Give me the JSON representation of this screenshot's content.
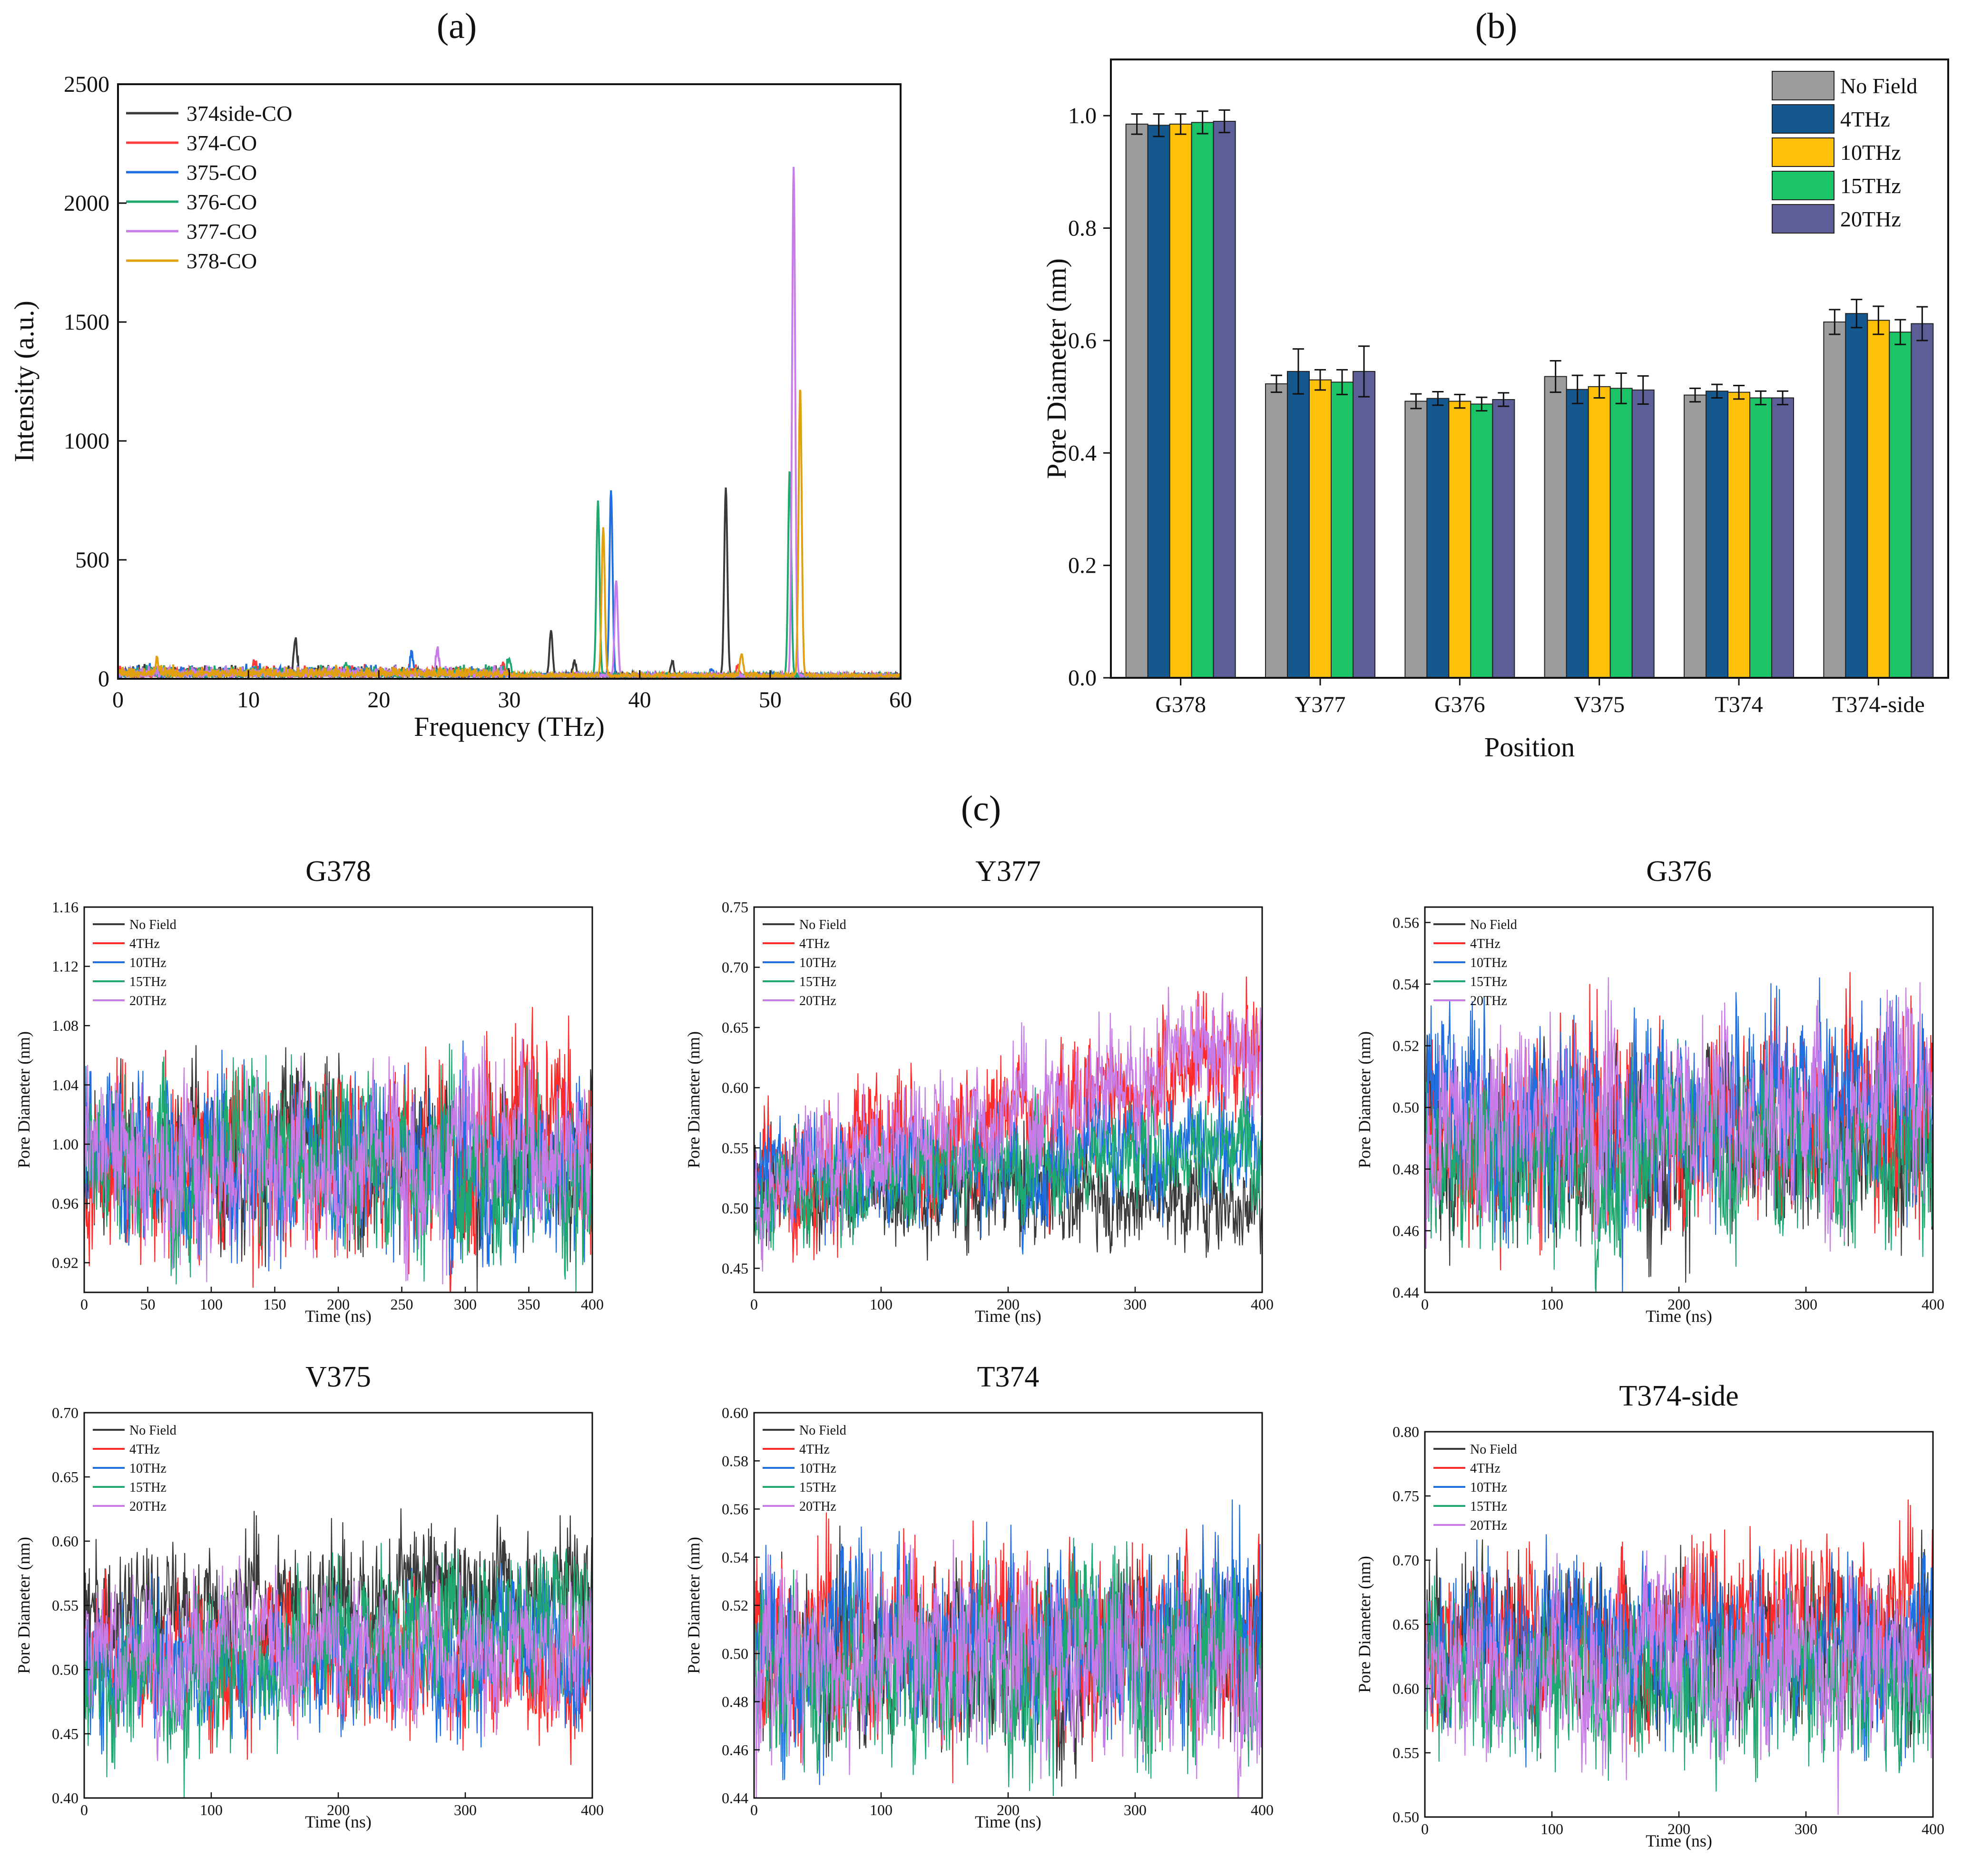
{
  "panel_labels": {
    "a": "(a)",
    "b": "(b)",
    "c": "(c)"
  },
  "chart_data": [
    {
      "id": "a",
      "type": "line",
      "title": "",
      "xlabel": "Frequency (THz)",
      "ylabel": "Intensity (a.u.)",
      "xlim": [
        0,
        60
      ],
      "ylim": [
        0,
        2500
      ],
      "xticks": [
        0,
        10,
        20,
        30,
        40,
        50,
        60
      ],
      "yticks": [
        0,
        500,
        1000,
        1500,
        2000,
        2500
      ],
      "grid": false,
      "legend_position": "top-left",
      "series": [
        {
          "name": "374side-CO",
          "color": "#3a3a3a",
          "peaks": [
            [
              2,
              30
            ],
            [
              13.6,
              150
            ],
            [
              33.2,
              190
            ],
            [
              46.6,
              790
            ],
            [
              35,
              60
            ],
            [
              42.5,
              60
            ]
          ]
        },
        {
          "name": "374-CO",
          "color": "#ff3b3b",
          "peaks": [
            [
              10.5,
              50
            ],
            [
              29.5,
              45
            ],
            [
              47.5,
              40
            ]
          ]
        },
        {
          "name": "375-CO",
          "color": "#1f6fe0",
          "peaks": [
            [
              22.5,
              80
            ],
            [
              37.8,
              780
            ],
            [
              45.5,
              30
            ]
          ]
        },
        {
          "name": "376-CO",
          "color": "#1fa870",
          "peaks": [
            [
              17.5,
              45
            ],
            [
              30,
              70
            ],
            [
              36.8,
              730
            ],
            [
              51.5,
              870
            ]
          ]
        },
        {
          "name": "377-CO",
          "color": "#c77ce8",
          "peaks": [
            [
              24.5,
              100
            ],
            [
              38.2,
              400
            ],
            [
              51.8,
              2140
            ]
          ]
        },
        {
          "name": "378-CO",
          "color": "#e0a010",
          "peaks": [
            [
              3,
              60
            ],
            [
              37.2,
              620
            ],
            [
              47.8,
              90
            ],
            [
              52.3,
              1210
            ]
          ]
        }
      ]
    },
    {
      "id": "b",
      "type": "bar",
      "title": "",
      "xlabel": "Position",
      "ylabel": "Pore Diameter (nm)",
      "ylim": [
        0,
        1.1
      ],
      "yticks": [
        "0.0",
        "0.2",
        "0.4",
        "0.6",
        "0.8",
        "1.0"
      ],
      "grid": false,
      "legend_position": "top-right",
      "categories": [
        "G378",
        "Y377",
        "G376",
        "V375",
        "T374",
        "T374-side"
      ],
      "series": [
        {
          "name": "No Field",
          "color": "#9c9c9c",
          "values": [
            0.985,
            0.523,
            0.492,
            0.536,
            0.503,
            0.633
          ],
          "errors": [
            0.018,
            0.015,
            0.013,
            0.028,
            0.012,
            0.022
          ]
        },
        {
          "name": "4THz",
          "color": "#14588f",
          "values": [
            0.983,
            0.545,
            0.497,
            0.513,
            0.51,
            0.648
          ],
          "errors": [
            0.02,
            0.04,
            0.012,
            0.025,
            0.012,
            0.025
          ]
        },
        {
          "name": "10THz",
          "color": "#ffc107",
          "values": [
            0.985,
            0.53,
            0.492,
            0.518,
            0.508,
            0.636
          ],
          "errors": [
            0.018,
            0.018,
            0.012,
            0.02,
            0.012,
            0.025
          ]
        },
        {
          "name": "15THz",
          "color": "#1bc466",
          "values": [
            0.988,
            0.526,
            0.487,
            0.515,
            0.498,
            0.615
          ],
          "errors": [
            0.02,
            0.022,
            0.012,
            0.027,
            0.012,
            0.022
          ]
        },
        {
          "name": "20THz",
          "color": "#5c5e98",
          "values": [
            0.99,
            0.545,
            0.495,
            0.512,
            0.498,
            0.63
          ],
          "errors": [
            0.02,
            0.045,
            0.012,
            0.025,
            0.012,
            0.03
          ]
        }
      ]
    },
    {
      "id": "c1",
      "type": "line",
      "title": "G378",
      "xlabel": "Time (ns)",
      "ylabel": "Pore Diameter (nm)",
      "xlim": [
        0,
        400
      ],
      "ylim": [
        0.9,
        1.16
      ],
      "xticks": [
        "0",
        "50",
        "100",
        "150",
        "200",
        "250",
        "300",
        "350",
        "400"
      ],
      "yticks": [
        "0.92",
        "0.96",
        "1.00",
        "1.04",
        "1.08",
        "1.12",
        "1.16"
      ],
      "legend_position": "top-left",
      "series": [
        {
          "name": "No Field",
          "color": "#3a3a3a",
          "start": 1.0,
          "end": 0.99,
          "noise": 0.025
        },
        {
          "name": "4THz",
          "color": "#ff2a2a",
          "start": 0.98,
          "end": 1.01,
          "noise": 0.03
        },
        {
          "name": "10THz",
          "color": "#1f6fe0",
          "start": 0.99,
          "end": 0.98,
          "noise": 0.028
        },
        {
          "name": "15THz",
          "color": "#1fa870",
          "start": 1.0,
          "end": 0.98,
          "noise": 0.028
        },
        {
          "name": "20THz",
          "color": "#c77ce8",
          "start": 0.985,
          "end": 1.005,
          "noise": 0.028
        }
      ]
    },
    {
      "id": "c2",
      "type": "line",
      "title": "Y377",
      "xlabel": "Time (ns)",
      "ylabel": "Pore Diameter (nm)",
      "xlim": [
        0,
        400
      ],
      "ylim": [
        0.43,
        0.75
      ],
      "xticks": [
        "0",
        "100",
        "200",
        "300",
        "400"
      ],
      "yticks": [
        "0.45",
        "0.50",
        "0.55",
        "0.60",
        "0.65",
        "0.70",
        "0.75"
      ],
      "legend_position": "top-left",
      "series": [
        {
          "name": "No Field",
          "color": "#3a3a3a",
          "start": 0.52,
          "end": 0.51,
          "noise": 0.02
        },
        {
          "name": "4THz",
          "color": "#ff2a2a",
          "start": 0.52,
          "end": 0.63,
          "noise": 0.025
        },
        {
          "name": "10THz",
          "color": "#1f6fe0",
          "start": 0.53,
          "end": 0.55,
          "noise": 0.022
        },
        {
          "name": "15THz",
          "color": "#1fa870",
          "start": 0.51,
          "end": 0.56,
          "noise": 0.02
        },
        {
          "name": "20THz",
          "color": "#c77ce8",
          "start": 0.515,
          "end": 0.64,
          "noise": 0.025
        }
      ]
    },
    {
      "id": "c3",
      "type": "line",
      "title": "G376",
      "xlabel": "Time (ns)",
      "ylabel": "Pore Diameter (nm)",
      "xlim": [
        0,
        400
      ],
      "ylim": [
        0.44,
        0.565
      ],
      "xticks": [
        "0",
        "100",
        "200",
        "300",
        "400"
      ],
      "yticks": [
        "0.44",
        "0.46",
        "0.48",
        "0.50",
        "0.52",
        "0.54",
        "0.56"
      ],
      "legend_position": "top-left",
      "series": [
        {
          "name": "No Field",
          "color": "#3a3a3a",
          "start": 0.49,
          "end": 0.49,
          "noise": 0.014
        },
        {
          "name": "4THz",
          "color": "#ff2a2a",
          "start": 0.49,
          "end": 0.505,
          "noise": 0.015
        },
        {
          "name": "10THz",
          "color": "#1f6fe0",
          "start": 0.495,
          "end": 0.505,
          "noise": 0.015
        },
        {
          "name": "15THz",
          "color": "#1fa870",
          "start": 0.485,
          "end": 0.485,
          "noise": 0.013
        },
        {
          "name": "20THz",
          "color": "#c77ce8",
          "start": 0.49,
          "end": 0.505,
          "noise": 0.015
        }
      ]
    },
    {
      "id": "c4",
      "type": "line",
      "title": "V375",
      "xlabel": "Time (ns)",
      "ylabel": "Pore Diameter (nm)",
      "xlim": [
        0,
        400
      ],
      "ylim": [
        0.4,
        0.7
      ],
      "xticks": [
        "0",
        "100",
        "200",
        "300",
        "400"
      ],
      "yticks": [
        "0.40",
        "0.45",
        "0.50",
        "0.55",
        "0.60",
        "0.65",
        "0.70"
      ],
      "legend_position": "top-left",
      "series": [
        {
          "name": "No Field",
          "color": "#3a3a3a",
          "start": 0.54,
          "end": 0.57,
          "noise": 0.025
        },
        {
          "name": "4THz",
          "color": "#ff2a2a",
          "start": 0.52,
          "end": 0.5,
          "noise": 0.025
        },
        {
          "name": "10THz",
          "color": "#1f6fe0",
          "start": 0.5,
          "end": 0.52,
          "noise": 0.024
        },
        {
          "name": "15THz",
          "color": "#1fa870",
          "start": 0.49,
          "end": 0.55,
          "noise": 0.028
        },
        {
          "name": "20THz",
          "color": "#c77ce8",
          "start": 0.52,
          "end": 0.51,
          "noise": 0.025
        }
      ]
    },
    {
      "id": "c5",
      "type": "line",
      "title": "T374",
      "xlabel": "Time (ns)",
      "ylabel": "Pore Diameter (nm)",
      "xlim": [
        0,
        400
      ],
      "ylim": [
        0.44,
        0.6
      ],
      "xticks": [
        "0",
        "100",
        "200",
        "300",
        "400"
      ],
      "yticks": [
        "0.44",
        "0.46",
        "0.48",
        "0.50",
        "0.52",
        "0.54",
        "0.56",
        "0.58",
        "0.60"
      ],
      "legend_position": "top-left",
      "series": [
        {
          "name": "No Field",
          "color": "#3a3a3a",
          "start": 0.5,
          "end": 0.5,
          "noise": 0.017
        },
        {
          "name": "4THz",
          "color": "#ff2a2a",
          "start": 0.505,
          "end": 0.51,
          "noise": 0.018
        },
        {
          "name": "10THz",
          "color": "#1f6fe0",
          "start": 0.505,
          "end": 0.51,
          "noise": 0.018
        },
        {
          "name": "15THz",
          "color": "#1fa870",
          "start": 0.495,
          "end": 0.5,
          "noise": 0.018
        },
        {
          "name": "20THz",
          "color": "#c77ce8",
          "start": 0.5,
          "end": 0.5,
          "noise": 0.018
        }
      ]
    },
    {
      "id": "c6",
      "type": "line",
      "title": "T374-side",
      "xlabel": "Time (ns)",
      "ylabel": "Pore Diameter (nm)",
      "xlim": [
        0,
        400
      ],
      "ylim": [
        0.5,
        0.8
      ],
      "xticks": [
        "0",
        "100",
        "200",
        "300",
        "400"
      ],
      "yticks": [
        "0.50",
        "0.55",
        "0.60",
        "0.65",
        "0.70",
        "0.75",
        "0.80"
      ],
      "legend_position": "top-left",
      "series": [
        {
          "name": "No Field",
          "color": "#3a3a3a",
          "start": 0.63,
          "end": 0.63,
          "noise": 0.03
        },
        {
          "name": "4THz",
          "color": "#ff2a2a",
          "start": 0.64,
          "end": 0.66,
          "noise": 0.03
        },
        {
          "name": "10THz",
          "color": "#1f6fe0",
          "start": 0.64,
          "end": 0.64,
          "noise": 0.03
        },
        {
          "name": "15THz",
          "color": "#1fa870",
          "start": 0.61,
          "end": 0.61,
          "noise": 0.03
        },
        {
          "name": "20THz",
          "color": "#c77ce8",
          "start": 0.62,
          "end": 0.63,
          "noise": 0.03
        }
      ]
    }
  ]
}
